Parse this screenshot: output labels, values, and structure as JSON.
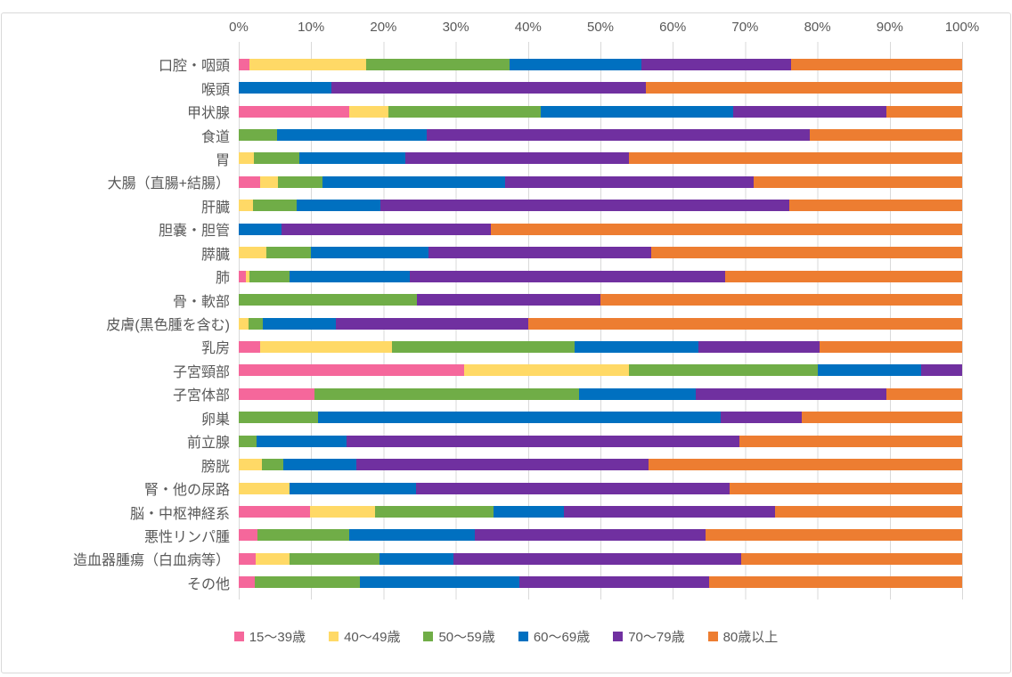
{
  "chart_data": {
    "type": "bar",
    "subtype": "stacked-horizontal-100pct",
    "title": "",
    "x_axis": {
      "position": "top",
      "min": 0,
      "max": 100,
      "tick_labels": [
        "0%",
        "10%",
        "20%",
        "30%",
        "40%",
        "50%",
        "60%",
        "70%",
        "80%",
        "90%",
        "100%"
      ]
    },
    "grid": true,
    "legend_position": "bottom",
    "colors": {
      "gridline": "#D9D9D9",
      "axis_text": "#595959",
      "frame_border": "#D9D9D9",
      "background": "#FFFFFF"
    },
    "series": [
      {
        "key": "15-39",
        "name": "15〜39歳",
        "color": "#F5679B"
      },
      {
        "key": "40-49",
        "name": "40〜49歳",
        "color": "#FFD966"
      },
      {
        "key": "50-59",
        "name": "50〜59歳",
        "color": "#70AD47"
      },
      {
        "key": "60-69",
        "name": "60〜69歳",
        "color": "#0070C0"
      },
      {
        "key": "70-79",
        "name": "70〜79歳",
        "color": "#7030A0"
      },
      {
        "key": "80plus",
        "name": "80歳以上",
        "color": "#ED7D31"
      }
    ],
    "categories": [
      "口腔・咽頭",
      "喉頭",
      "甲状腺",
      "食道",
      "胃",
      "大腸（直腸+結腸）",
      "肝臓",
      "胆嚢・胆管",
      "膵臓",
      "肺",
      "骨・軟部",
      "皮膚(黒色腫を含む)",
      "乳房",
      "子宮頸部",
      "子宮体部",
      "卵巣",
      "前立腺",
      "膀胱",
      "腎・他の尿路",
      "脳・中枢神経系",
      "悪性リンパ腫",
      "造血器腫瘍（白血病等）",
      "その他"
    ],
    "values": [
      [
        1.5,
        16.1,
        19.8,
        18.3,
        20.7,
        23.6
      ],
      [
        0,
        0,
        0,
        12.8,
        43.5,
        43.7
      ],
      [
        15.3,
        5.4,
        21.1,
        26.6,
        21.1,
        10.5
      ],
      [
        0,
        0,
        5.3,
        20.7,
        53.0,
        21.0
      ],
      [
        0,
        2.1,
        6.3,
        14.6,
        31.0,
        46.0
      ],
      [
        2.9,
        2.5,
        6.2,
        25.2,
        34.4,
        28.8
      ],
      [
        0,
        2.0,
        6.0,
        11.6,
        56.5,
        23.9
      ],
      [
        0,
        0,
        0,
        5.9,
        29.0,
        65.1
      ],
      [
        0,
        3.8,
        6.2,
        16.2,
        30.8,
        43.0
      ],
      [
        1.0,
        0.5,
        5.5,
        16.6,
        43.6,
        32.8
      ],
      [
        0,
        0,
        24.6,
        0,
        25.4,
        50.0
      ],
      [
        0,
        1.4,
        1.9,
        10.1,
        26.6,
        60.0
      ],
      [
        3.0,
        18.2,
        25.2,
        17.2,
        16.7,
        19.7
      ],
      [
        31.1,
        22.9,
        26.0,
        14.3,
        5.7,
        0
      ],
      [
        10.5,
        0,
        36.5,
        16.2,
        26.3,
        10.5
      ],
      [
        0,
        0,
        11.0,
        55.6,
        11.2,
        22.2
      ],
      [
        0,
        0,
        2.5,
        12.4,
        54.3,
        30.8
      ],
      [
        0,
        3.2,
        3.0,
        10.0,
        40.4,
        43.4
      ],
      [
        0,
        7.0,
        0,
        17.5,
        43.4,
        32.1
      ],
      [
        9.8,
        9.0,
        16.4,
        9.7,
        29.3,
        25.8
      ],
      [
        2.6,
        0,
        12.7,
        17.3,
        31.9,
        35.5
      ],
      [
        2.3,
        4.7,
        12.5,
        10.2,
        39.7,
        30.6
      ],
      [
        2.2,
        0,
        14.6,
        22.0,
        26.2,
        35.0
      ]
    ]
  }
}
